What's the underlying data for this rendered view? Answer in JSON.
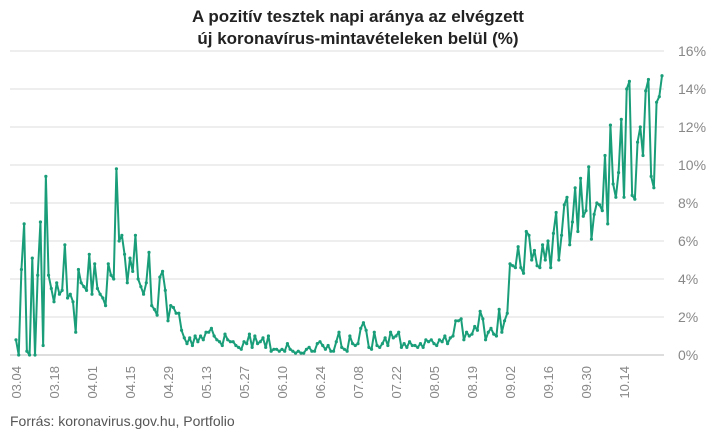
{
  "chart_data": {
    "type": "line",
    "title_line1": "A pozitív tesztek napi aránya az elvégzett",
    "title_line2": "új koronavírus-mintavételeken belül (%)",
    "source": "Forrás: koronavirus.gov.hu, Portfolio",
    "ylim": [
      0,
      16
    ],
    "yticks": [
      "0%",
      "2%",
      "4%",
      "6%",
      "8%",
      "10%",
      "12%",
      "14%",
      "16%"
    ],
    "grid": true,
    "colors": {
      "line": "#1a9e7a",
      "grid": "#dddddd",
      "text": "#888888"
    },
    "xticks": [
      "03.04",
      "03.18",
      "04.01",
      "04.15",
      "04.29",
      "05.13",
      "05.27",
      "06.10",
      "06.24",
      "07.08",
      "07.22",
      "08.05",
      "08.19",
      "09.02",
      "09.16",
      "09.30",
      "10.14"
    ],
    "series": [
      {
        "values": [
          0.8,
          0.0,
          4.5,
          6.9,
          0.2,
          0.0,
          5.1,
          0.0,
          4.2,
          7.0,
          0.5,
          9.4,
          4.2,
          3.5,
          2.8,
          3.8,
          3.2,
          3.4,
          5.8,
          3.0,
          3.2,
          2.8,
          1.2,
          4.5,
          3.8,
          3.6,
          3.4,
          5.3,
          3.2,
          4.8,
          3.5,
          3.2,
          3.0,
          2.6,
          4.8,
          4.2,
          4.0,
          9.8,
          6.0,
          6.3,
          5.3,
          3.8,
          5.1,
          4.4,
          6.3,
          4.0,
          3.6,
          3.2,
          3.8,
          5.4,
          2.6,
          2.4,
          2.1,
          4.1,
          4.4,
          3.4,
          1.8,
          2.6,
          2.5,
          2.2,
          2.2,
          1.3,
          0.9,
          0.6,
          0.9,
          0.5,
          1.0,
          0.7,
          1.0,
          0.8,
          1.2,
          1.2,
          1.4,
          1.0,
          0.8,
          0.7,
          0.5,
          1.1,
          0.8,
          0.7,
          0.7,
          0.5,
          0.4,
          0.3,
          0.7,
          0.6,
          1.1,
          0.4,
          1.0,
          0.6,
          0.7,
          0.9,
          0.4,
          1.0,
          0.2,
          0.3,
          0.3,
          0.2,
          0.3,
          0.2,
          0.6,
          0.3,
          0.2,
          0.1,
          0.2,
          0.1,
          0.1,
          0.3,
          0.4,
          0.2,
          0.2,
          0.6,
          0.7,
          0.5,
          0.3,
          0.5,
          0.2,
          0.2,
          0.7,
          1.2,
          0.4,
          0.3,
          0.2,
          1.0,
          0.6,
          0.5,
          0.6,
          1.4,
          1.7,
          1.3,
          0.4,
          0.3,
          1.2,
          0.5,
          0.4,
          0.6,
          0.9,
          0.5,
          1.2,
          0.9,
          1.0,
          1.2,
          0.4,
          0.6,
          0.4,
          0.7,
          0.5,
          0.5,
          0.4,
          0.6,
          0.4,
          0.8,
          0.7,
          0.8,
          0.6,
          0.5,
          0.8,
          0.7,
          1.0,
          0.6,
          0.9,
          1.0,
          1.8,
          1.8,
          1.9,
          0.8,
          1.2,
          1.0,
          1.1,
          1.5,
          1.3,
          2.3,
          1.9,
          0.8,
          1.2,
          1.4,
          1.1,
          1.0,
          2.4,
          1.2,
          1.8,
          2.2,
          4.8,
          4.7,
          4.6,
          5.7,
          4.6,
          4.3,
          6.5,
          6.3,
          5.0,
          5.5,
          4.7,
          4.6,
          5.8,
          5.0,
          6.0,
          4.6,
          6.4,
          7.5,
          5.0,
          6.3,
          7.9,
          8.3,
          5.8,
          7.0,
          8.8,
          6.5,
          9.3,
          7.3,
          7.6,
          9.9,
          6.1,
          7.4,
          8.0,
          7.9,
          7.6,
          10.5,
          6.9,
          12.1,
          9.0,
          8.3,
          9.6,
          12.4,
          8.3,
          14.0,
          14.4,
          8.4,
          8.2,
          11.2,
          12.0,
          10.5,
          13.9,
          14.5,
          9.4,
          8.8,
          13.3,
          13.6,
          14.7
        ]
      }
    ]
  }
}
